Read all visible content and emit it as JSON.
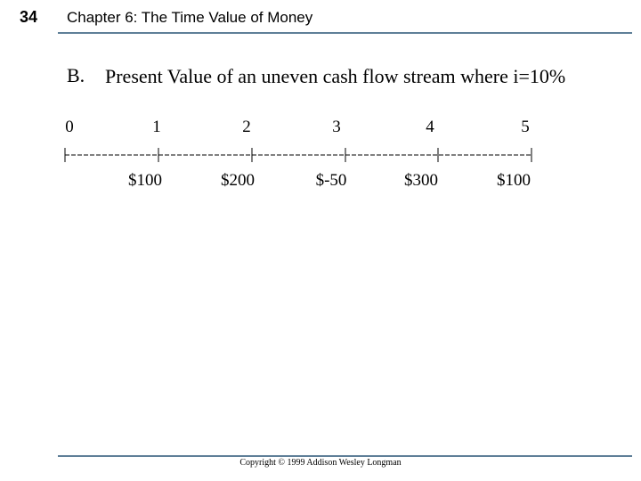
{
  "header": {
    "page_number": "34",
    "title": "Chapter 6: The Time Value of Money"
  },
  "section": {
    "label": "B.",
    "title": "Present Value of an uneven cash flow stream where i=10%"
  },
  "timeline": {
    "periods": [
      "0",
      "1",
      "2",
      "3",
      "4",
      "5"
    ],
    "cash_flows": [
      null,
      "$100",
      "$200",
      "$-50",
      "$300",
      "$100"
    ]
  },
  "footer": {
    "copyright": "Copyright © 1999 Addison Wesley Longman"
  }
}
